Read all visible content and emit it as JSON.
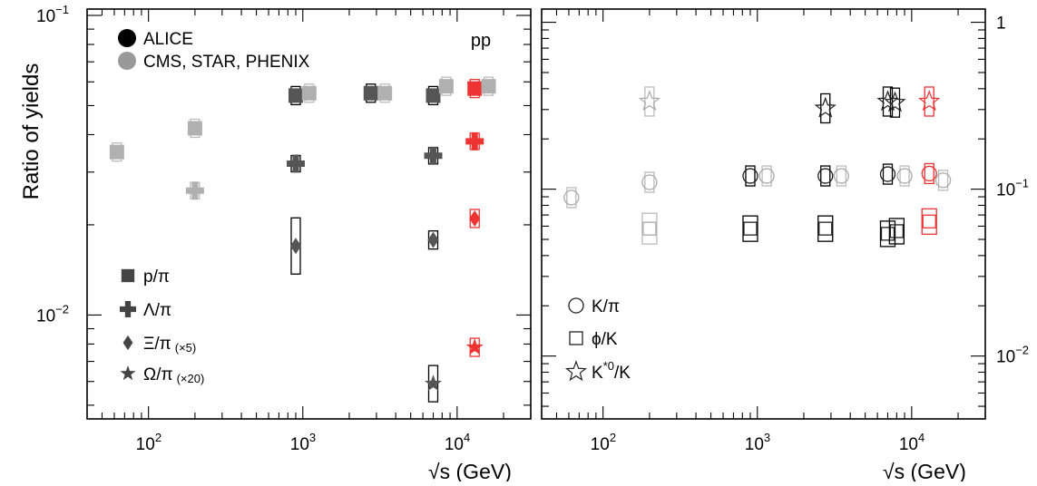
{
  "chart_data": [
    {
      "type": "scatter",
      "title": "",
      "xlabel": "√s (GeV)",
      "ylabel": "Ratio of yields",
      "xscale": "log",
      "yscale": "log",
      "xlim": [
        40,
        30000
      ],
      "ylim": [
        0.0045,
        0.105
      ],
      "x_tick_labels": [
        {
          "text": "10",
          "sup": "2"
        },
        {
          "text": "10",
          "sup": "3"
        },
        {
          "text": "10",
          "sup": "4"
        }
      ],
      "y_tick_labels": [
        {
          "text": "10",
          "sup": "−1"
        },
        {
          "text": "10",
          "sup": "−2"
        }
      ],
      "y_axis_side": "left",
      "annotation": "pp",
      "legend_experiments": [
        {
          "label": "ALICE",
          "color": "#000000"
        },
        {
          "label": "CMS, STAR, PHENIX",
          "color": "#999999"
        }
      ],
      "legend_species": [
        {
          "marker": "square",
          "label_main": "p/π",
          "label_scale": ""
        },
        {
          "marker": "cross",
          "label_main": "Λ/π",
          "label_scale": ""
        },
        {
          "marker": "diamond",
          "label_main": "Ξ/π",
          "label_scale": "(×5)"
        },
        {
          "marker": "star",
          "label_main": "Ω/π",
          "label_scale": "(×20)"
        }
      ],
      "colors": {
        "alice": "#555555",
        "other": "#b0b0b0",
        "highlight": "#ee3333"
      },
      "series": [
        {
          "name": "p/π",
          "marker": "square",
          "points": [
            {
              "x": 62.4,
              "y": 0.035,
              "group": "other"
            },
            {
              "x": 200,
              "y": 0.042,
              "group": "other"
            },
            {
              "x": 900,
              "y": 0.054,
              "group": "alice"
            },
            {
              "x": 1100,
              "y": 0.055,
              "group": "other"
            },
            {
              "x": 2760,
              "y": 0.055,
              "group": "alice"
            },
            {
              "x": 3400,
              "y": 0.055,
              "group": "other"
            },
            {
              "x": 7000,
              "y": 0.054,
              "group": "alice"
            },
            {
              "x": 8500,
              "y": 0.058,
              "group": "other"
            },
            {
              "x": 13000,
              "y": 0.057,
              "group": "highlight"
            },
            {
              "x": 16000,
              "y": 0.058,
              "group": "other"
            }
          ]
        },
        {
          "name": "Λ/π",
          "marker": "cross",
          "points": [
            {
              "x": 200,
              "y": 0.026,
              "group": "other"
            },
            {
              "x": 900,
              "y": 0.032,
              "group": "alice"
            },
            {
              "x": 7000,
              "y": 0.034,
              "group": "alice"
            },
            {
              "x": 13000,
              "y": 0.038,
              "group": "highlight"
            }
          ]
        },
        {
          "name": "Ξ/π",
          "marker": "diamond",
          "points": [
            {
              "x": 900,
              "y": 0.017,
              "group": "alice"
            },
            {
              "x": 7000,
              "y": 0.0178,
              "group": "alice"
            },
            {
              "x": 13000,
              "y": 0.021,
              "group": "highlight"
            }
          ]
        },
        {
          "name": "Ω/π",
          "marker": "star",
          "points": [
            {
              "x": 7000,
              "y": 0.0059,
              "group": "alice"
            },
            {
              "x": 13000,
              "y": 0.0078,
              "group": "highlight"
            }
          ]
        }
      ]
    },
    {
      "type": "scatter",
      "title": "",
      "xlabel": "√s (GeV)",
      "ylabel": "",
      "xscale": "log",
      "yscale": "log",
      "xlim": [
        40,
        30000
      ],
      "ylim": [
        0.0042,
        1.2
      ],
      "x_tick_labels": [
        {
          "text": "10",
          "sup": "2"
        },
        {
          "text": "10",
          "sup": "3"
        },
        {
          "text": "10",
          "sup": "4"
        }
      ],
      "y_tick_labels": [
        {
          "text": "1",
          "sup": ""
        },
        {
          "text": "10",
          "sup": "−1"
        },
        {
          "text": "10",
          "sup": "−2"
        }
      ],
      "y_axis_side": "right",
      "legend_species": [
        {
          "marker": "circle-open",
          "label_main": "K/π",
          "label_sup": ""
        },
        {
          "marker": "square-open",
          "label_main": "ϕ/K",
          "label_sup": ""
        },
        {
          "marker": "star-open",
          "label_main": "K",
          "label_sup": "*0",
          "label_tail": "/K"
        }
      ],
      "colors": {
        "alice": "#222222",
        "other": "#aaaaaa",
        "highlight": "#ee3333"
      },
      "series": [
        {
          "name": "K/π",
          "marker": "circle-open",
          "points": [
            {
              "x": 62.4,
              "y": 0.089,
              "group": "other"
            },
            {
              "x": 200,
              "y": 0.11,
              "group": "other"
            },
            {
              "x": 900,
              "y": 0.12,
              "group": "alice"
            },
            {
              "x": 1150,
              "y": 0.12,
              "group": "other"
            },
            {
              "x": 2760,
              "y": 0.12,
              "group": "alice"
            },
            {
              "x": 3500,
              "y": 0.12,
              "group": "other"
            },
            {
              "x": 7000,
              "y": 0.123,
              "group": "alice"
            },
            {
              "x": 9000,
              "y": 0.12,
              "group": "other"
            },
            {
              "x": 13000,
              "y": 0.124,
              "group": "highlight"
            },
            {
              "x": 16000,
              "y": 0.113,
              "group": "other"
            }
          ]
        },
        {
          "name": "ϕ/K",
          "marker": "square-open",
          "points": [
            {
              "x": 200,
              "y": 0.058,
              "group": "other"
            },
            {
              "x": 900,
              "y": 0.058,
              "group": "alice"
            },
            {
              "x": 2760,
              "y": 0.058,
              "group": "alice"
            },
            {
              "x": 7000,
              "y": 0.054,
              "group": "alice"
            },
            {
              "x": 8000,
              "y": 0.056,
              "group": "alice"
            },
            {
              "x": 13000,
              "y": 0.064,
              "group": "highlight"
            }
          ]
        },
        {
          "name": "K*0/K",
          "marker": "star-open",
          "points": [
            {
              "x": 200,
              "y": 0.335,
              "group": "other"
            },
            {
              "x": 2760,
              "y": 0.305,
              "group": "alice"
            },
            {
              "x": 7000,
              "y": 0.335,
              "group": "alice"
            },
            {
              "x": 7800,
              "y": 0.33,
              "group": "alice"
            },
            {
              "x": 13000,
              "y": 0.335,
              "group": "highlight"
            }
          ]
        }
      ]
    }
  ]
}
